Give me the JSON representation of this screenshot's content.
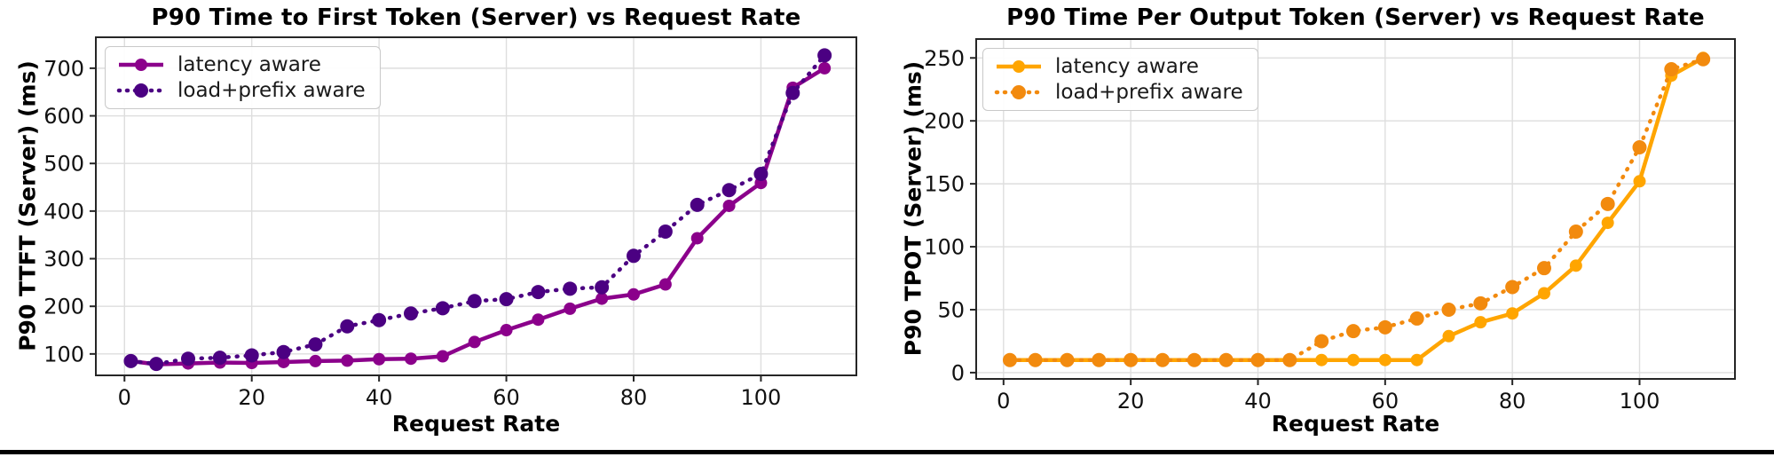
{
  "page": {
    "divider_color": "#000000"
  },
  "chart_data": [
    {
      "type": "line",
      "title": "P90 Time to First Token (Server) vs Request Rate",
      "xlabel": "Request Rate",
      "ylabel": "P90 TTFT (Server) (ms)",
      "legend_position": "upper left",
      "grid": true,
      "x": [
        1,
        5,
        10,
        15,
        20,
        25,
        30,
        35,
        40,
        45,
        50,
        55,
        60,
        65,
        70,
        75,
        80,
        85,
        90,
        95,
        100,
        105,
        110
      ],
      "series": [
        {
          "name": "latency aware",
          "linestyle": "solid",
          "color": "#8B008B",
          "values": [
            85,
            78,
            80,
            82,
            81,
            83,
            85,
            86,
            89,
            90,
            95,
            125,
            150,
            172,
            195,
            216,
            225,
            246,
            343,
            411,
            459,
            659,
            700
          ]
        },
        {
          "name": "load+prefix aware",
          "linestyle": "dotted",
          "color": "#4B0082",
          "values": [
            85,
            79,
            90,
            92,
            97,
            104,
            120,
            158,
            171,
            185,
            196,
            211,
            215,
            230,
            237,
            240,
            306,
            357,
            413,
            444,
            478,
            648,
            727
          ]
        }
      ],
      "xticks": [
        0,
        20,
        40,
        60,
        80,
        100
      ],
      "yticks": [
        100,
        200,
        300,
        400,
        500,
        600,
        700
      ],
      "xlim": [
        -4.5,
        115
      ],
      "ylim": [
        55,
        765
      ]
    },
    {
      "type": "line",
      "title": "P90 Time Per Output Token (Server) vs Request Rate",
      "xlabel": "Request Rate",
      "ylabel": "P90 TPOT (Server) (ms)",
      "legend_position": "upper left",
      "grid": true,
      "x": [
        1,
        5,
        10,
        15,
        20,
        25,
        30,
        35,
        40,
        45,
        50,
        55,
        60,
        65,
        70,
        75,
        80,
        85,
        90,
        95,
        100,
        105,
        110
      ],
      "series": [
        {
          "name": "latency aware",
          "linestyle": "solid",
          "color": "#FFA500",
          "values": [
            10,
            10,
            10,
            10,
            10,
            10,
            10,
            10,
            10,
            10,
            10,
            10,
            10,
            10,
            29,
            40,
            47,
            63,
            85,
            119,
            152,
            236,
            250
          ]
        },
        {
          "name": "load+prefix aware",
          "linestyle": "dotted",
          "color": "#F28A0E",
          "values": [
            10,
            10,
            10,
            10,
            10,
            10,
            10,
            10,
            10,
            10,
            25,
            33,
            36,
            43,
            50,
            55,
            68,
            83,
            112,
            134,
            179,
            241,
            249
          ]
        }
      ],
      "xticks": [
        0,
        20,
        40,
        60,
        80,
        100
      ],
      "yticks": [
        0,
        50,
        100,
        150,
        200,
        250
      ],
      "xlim": [
        -4.3,
        115
      ],
      "ylim": [
        -5,
        265
      ]
    }
  ]
}
